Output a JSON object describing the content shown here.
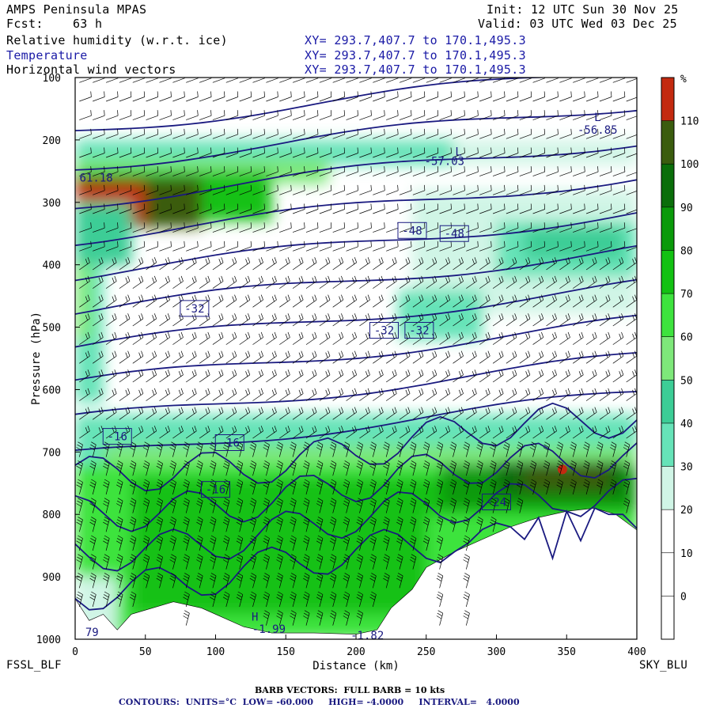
{
  "header": {
    "model": "AMPS Peninsula MPAS",
    "fcst": "Fcst:    63 h",
    "init": "Init: 12 UTC Sun 30 Nov 25",
    "valid": "Valid: 03 UTC Wed 03 Dec 25",
    "field1": "Relative humidity (w.r.t. ice)",
    "field2": "Temperature",
    "field3": "Horizontal wind vectors",
    "xy": "XY= 293.7,407.7 to 170.1,495.3"
  },
  "footer": {
    "left_station": "FSSL_BLF",
    "right_station": "SKY_BLU",
    "barb_note": "BARB VECTORS:  FULL BARB = 10 kts",
    "contour_note": "CONTOURS:  UNITS=°C  LOW= -60.000     HIGH= -4.0000     INTERVAL=   4.0000"
  },
  "colors": {
    "contour": "#1a1a80",
    "barb": "#000000",
    "terrain": "#ffffff"
  },
  "chart_data": {
    "type": "heatmap",
    "xlabel": "Distance (km)",
    "ylabel": "Pressure (hPa)",
    "xlim": [
      0,
      400
    ],
    "ylim": [
      1000,
      100
    ],
    "xticks": [
      "0",
      "50",
      "100",
      "150",
      "200",
      "250",
      "300",
      "350",
      "400"
    ],
    "yticks": [
      "100",
      "200",
      "300",
      "400",
      "500",
      "600",
      "700",
      "800",
      "900",
      "1000"
    ],
    "colorbar": {
      "unit": "%",
      "levels": [
        "0",
        "10",
        "20",
        "30",
        "40",
        "50",
        "60",
        "70",
        "80",
        "90",
        "100",
        "110"
      ],
      "colors": [
        "#ffffff",
        "#ffffff",
        "#ffffff",
        "#d0f5e6",
        "#66e3b8",
        "#3ccd96",
        "#7ee87a",
        "#3ee33e",
        "#12c112",
        "#0a9a0a",
        "#0a6e0a",
        "#3a5c0e",
        "#c32a10"
      ]
    },
    "contour_labels": [
      {
        "text": "-16",
        "x": 30,
        "p": 675
      },
      {
        "text": "-16",
        "x": 110,
        "p": 685
      },
      {
        "text": "-16",
        "x": 100,
        "p": 760
      },
      {
        "text": "-32",
        "x": 85,
        "p": 470
      },
      {
        "text": "-32",
        "x": 220,
        "p": 505
      },
      {
        "text": "-32",
        "x": 245,
        "p": 505
      },
      {
        "text": "-48",
        "x": 240,
        "p": 345
      },
      {
        "text": "-48",
        "x": 270,
        "p": 350
      },
      {
        "text": "-24",
        "x": 300,
        "p": 780
      }
    ],
    "extrema_labels": [
      {
        "text": "L",
        "x": 273,
        "p": 225
      },
      {
        "text": "-57.03",
        "x": 263,
        "p": 240
      },
      {
        "text": "L",
        "x": 372,
        "p": 170
      },
      {
        "text": "-56.85",
        "x": 372,
        "p": 190
      },
      {
        "text": "61.18",
        "x": 15,
        "p": 267
      },
      {
        "text": "H",
        "x": 128,
        "p": 970
      },
      {
        "text": "-1.99",
        "x": 138,
        "p": 990
      },
      {
        "text": "79",
        "x": 12,
        "p": 995
      },
      {
        "text": "-1.82",
        "x": 208,
        "p": 1000
      }
    ],
    "temperature_contours_C": [
      -56,
      -52,
      -48,
      -44,
      -40,
      -36,
      -32,
      -28,
      -24,
      -20,
      -16,
      -12,
      -8,
      -4
    ]
  }
}
